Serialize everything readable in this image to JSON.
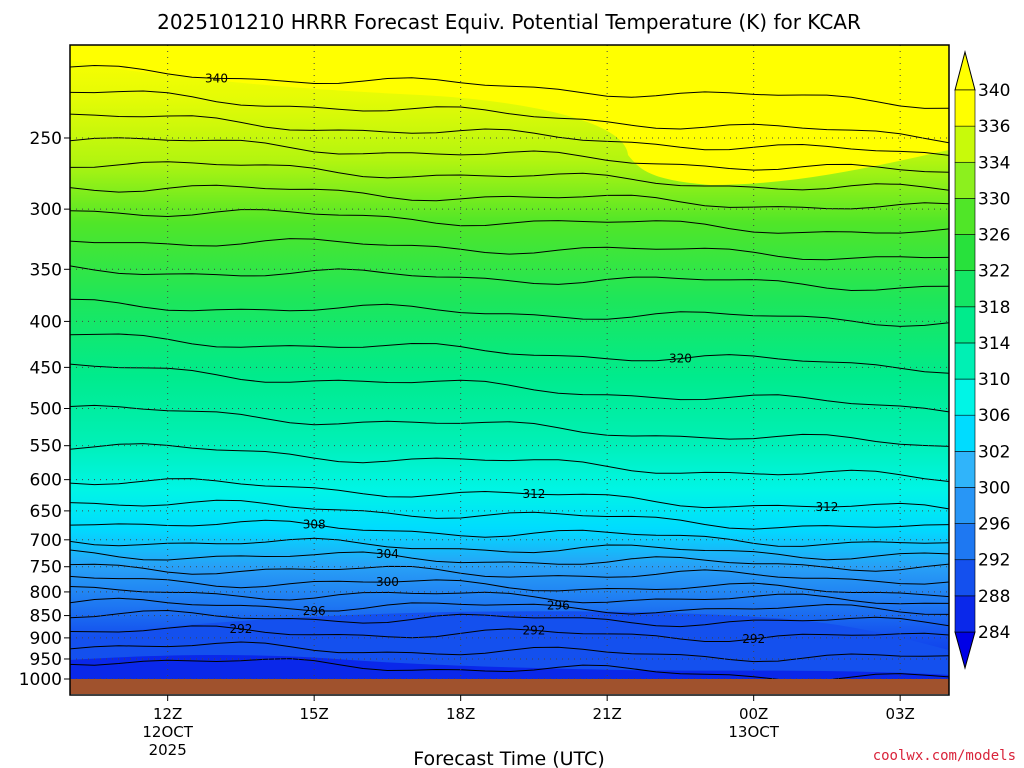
{
  "chart_data": {
    "type": "heatmap",
    "subtype": "filled-contour time-height cross section",
    "title": "2025101210 HRRR Forecast Equiv. Potential Temperature (K) for KCAR",
    "xlabel": "Forecast Time (UTC)",
    "ylabel": "",
    "y_scale": "log",
    "y_reversed": true,
    "ylim": [
      1000,
      200
    ],
    "y_ticks": [
      250,
      300,
      350,
      400,
      450,
      500,
      550,
      600,
      650,
      700,
      750,
      800,
      850,
      900,
      950,
      1000
    ],
    "x_ticks": [
      {
        "hour": 12,
        "label": "12Z",
        "sub": [
          "12OCT",
          "2025"
        ]
      },
      {
        "hour": 15,
        "label": "15Z",
        "sub": []
      },
      {
        "hour": 18,
        "label": "18Z",
        "sub": []
      },
      {
        "hour": 21,
        "label": "21Z",
        "sub": []
      },
      {
        "hour": 24,
        "label": "00Z",
        "sub": [
          "13OCT"
        ]
      },
      {
        "hour": 27,
        "label": "03Z",
        "sub": []
      }
    ],
    "xlim_hours": [
      10,
      28
    ],
    "grid": true,
    "colorbar": {
      "levels": [
        284,
        288,
        292,
        296,
        300,
        302,
        306,
        310,
        314,
        318,
        322,
        326,
        330,
        334,
        336,
        340
      ],
      "colors": [
        "#0000e6",
        "#0a28ea",
        "#1450ee",
        "#1e78f2",
        "#2896f6",
        "#30b4fa",
        "#00dcff",
        "#00f5e6",
        "#00f0b4",
        "#00eb8c",
        "#14e664",
        "#28e13c",
        "#50e628",
        "#8cf01e",
        "#c8fa0a",
        "#ffff00"
      ],
      "extend": "both",
      "placement": "right"
    },
    "contour_interval": 2,
    "contour_labels": [
      "340",
      "320",
      "312",
      "308",
      "312",
      "304",
      "300",
      "296",
      "296",
      "292",
      "292",
      "292"
    ],
    "surface_color": "#a0522d",
    "levels_K_at_pressure": {
      "pressure": [
        1000,
        950,
        900,
        850,
        800,
        750,
        700,
        650,
        600,
        550,
        500,
        450,
        400,
        350,
        300,
        250,
        210
      ],
      "profile_12Z": [
        285,
        288,
        291,
        294,
        298,
        302,
        306,
        309,
        312,
        314,
        316,
        318,
        321,
        324,
        328,
        334,
        340
      ],
      "profile_00Z": [
        288,
        290,
        292,
        295,
        300,
        304,
        309,
        312,
        314,
        316,
        318,
        320,
        322,
        325,
        330,
        338,
        342
      ]
    }
  },
  "credit": "coolwx.com/models",
  "colors": {
    "axis": "#000000",
    "grid": "#555555",
    "surface": "#a0522d",
    "credit": "#d9233a"
  }
}
